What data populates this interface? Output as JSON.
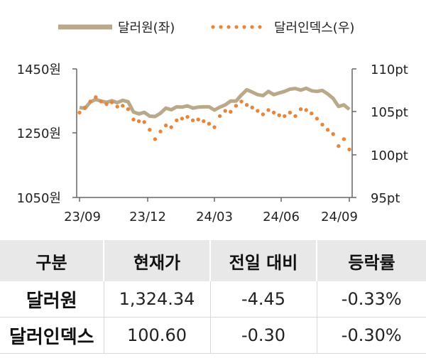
{
  "chart_data": {
    "type": "line",
    "legend_placement": "top",
    "x_tick_labels": [
      "23/09",
      "23/12",
      "24/03",
      "24/06",
      "24/09"
    ],
    "y_left": {
      "tick_labels": [
        "1450원",
        "1250원",
        "1050원"
      ],
      "ylim": [
        1050,
        1450
      ]
    },
    "y_right": {
      "tick_labels": [
        "110pt",
        "105pt",
        "100pt",
        "95pt"
      ],
      "ylim": [
        95,
        110
      ]
    },
    "colors": {
      "krw": "#b9a98a",
      "dxy": "#e8853a"
    },
    "series": [
      {
        "name": "달러원(좌)",
        "axis": "left",
        "style": "solid",
        "x_month": [
          0,
          0.25,
          0.5,
          0.75,
          1,
          1.25,
          1.5,
          1.75,
          2,
          2.25,
          2.5,
          2.75,
          3,
          3.25,
          3.5,
          3.75,
          4,
          4.25,
          4.5,
          4.75,
          5,
          5.25,
          5.5,
          5.75,
          6,
          6.25,
          6.5,
          6.75,
          7,
          7.25,
          7.5,
          7.75,
          8,
          8.25,
          8.5,
          8.75,
          9,
          9.25,
          9.5,
          9.75,
          10,
          10.25,
          10.5,
          10.75,
          11,
          11.25,
          11.5,
          11.75,
          12,
          12.25,
          12.5
        ],
        "values": [
          1330,
          1327,
          1347,
          1355,
          1350,
          1346,
          1351,
          1345,
          1352,
          1348,
          1316,
          1310,
          1315,
          1303,
          1302,
          1312,
          1328,
          1323,
          1332,
          1331,
          1335,
          1328,
          1331,
          1332,
          1332,
          1322,
          1331,
          1338,
          1350,
          1350,
          1369,
          1385,
          1378,
          1370,
          1367,
          1380,
          1370,
          1375,
          1380,
          1387,
          1389,
          1384,
          1390,
          1382,
          1380,
          1383,
          1372,
          1358,
          1333,
          1338,
          1324
        ]
      },
      {
        "name": "달러인덱스(우)",
        "axis": "right",
        "style": "dotted",
        "x_month": [
          0,
          0.25,
          0.5,
          0.75,
          1,
          1.25,
          1.5,
          1.75,
          2,
          2.25,
          2.5,
          2.75,
          3,
          3.25,
          3.5,
          3.75,
          4,
          4.25,
          4.5,
          4.75,
          5,
          5.25,
          5.5,
          5.75,
          6,
          6.25,
          6.5,
          6.75,
          7,
          7.25,
          7.5,
          7.75,
          8,
          8.25,
          8.5,
          8.75,
          9,
          9.25,
          9.5,
          9.75,
          10,
          10.25,
          10.5,
          10.75,
          11,
          11.25,
          11.5,
          11.75,
          12,
          12.25,
          12.5
        ],
        "values": [
          104.9,
          105.5,
          106.2,
          106.7,
          106.2,
          105.9,
          106.1,
          105.6,
          105.7,
          105.3,
          104.1,
          103.9,
          103.8,
          102.9,
          101.8,
          102.7,
          103.4,
          103.2,
          104.0,
          104.2,
          104.4,
          104.0,
          104.1,
          103.9,
          103.6,
          103.2,
          104.5,
          105.1,
          105.0,
          105.7,
          106.2,
          105.8,
          105.5,
          105.1,
          104.7,
          105.2,
          104.9,
          104.6,
          104.5,
          104.9,
          104.5,
          105.3,
          105.2,
          104.8,
          104.2,
          103.5,
          102.9,
          102.4,
          101.0,
          101.8,
          100.6
        ]
      }
    ]
  },
  "table": {
    "headers": [
      "구분",
      "현재가",
      "전일 대비",
      "등락률"
    ],
    "rows": [
      [
        "달러원",
        "1,324.34",
        "-4.45",
        "-0.33%"
      ],
      [
        "달러인덱스",
        "100.60",
        "-0.30",
        "-0.30%"
      ]
    ]
  }
}
